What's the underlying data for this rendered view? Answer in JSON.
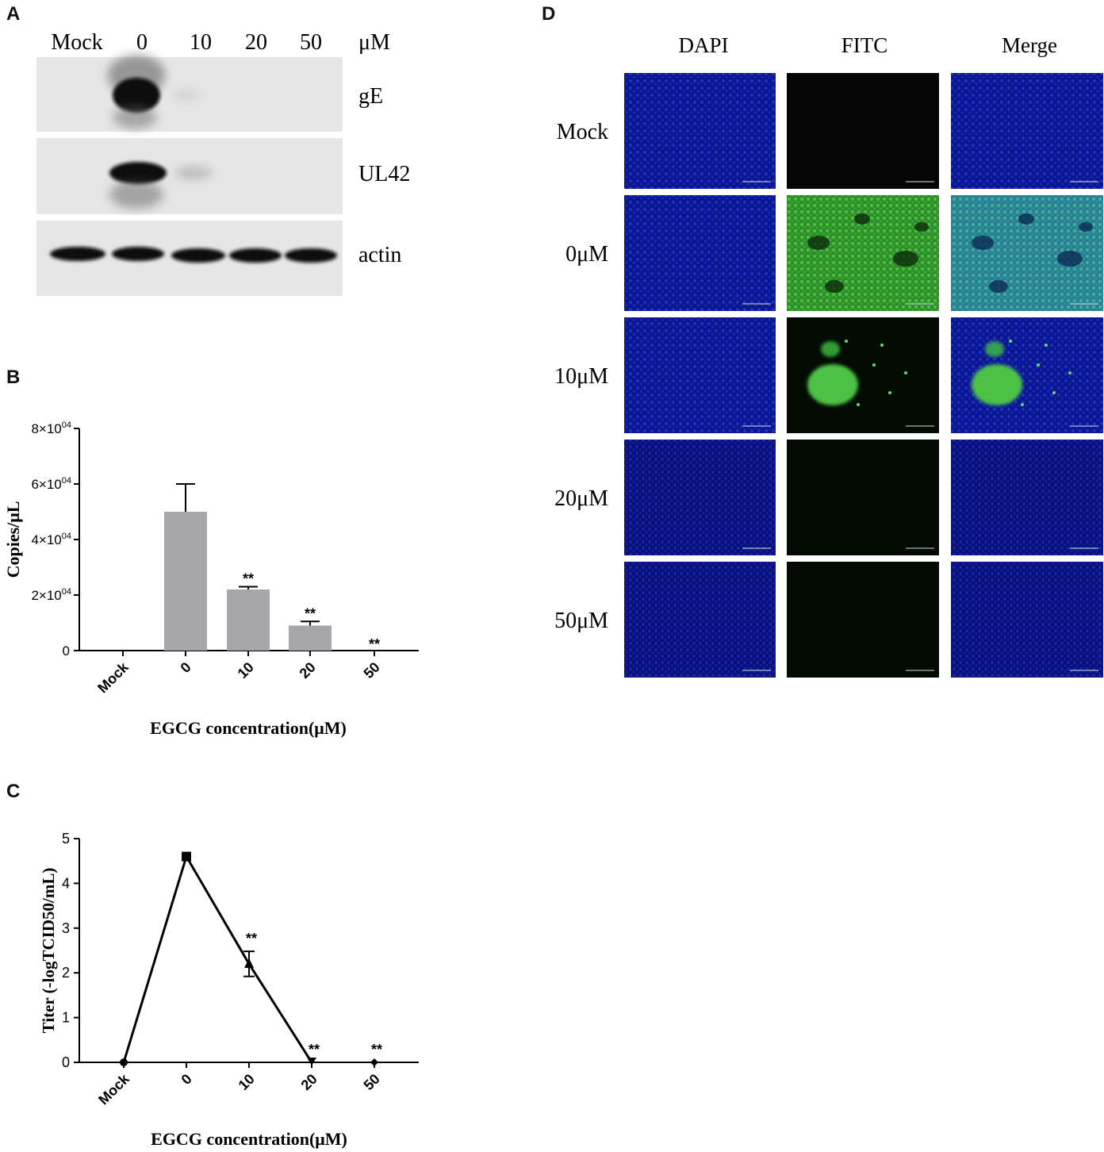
{
  "panels": {
    "a": "A",
    "b": "B",
    "c": "C",
    "d": "D"
  },
  "western_blot": {
    "lanes": [
      "Mock",
      "0",
      "10",
      "20",
      "50"
    ],
    "unit": "μM",
    "bands": [
      "gE",
      "UL42",
      "actin"
    ]
  },
  "fluorescence": {
    "channels": [
      "DAPI",
      "FITC",
      "Merge"
    ],
    "rows": [
      "Mock",
      "0μM",
      "10μM",
      "20μM",
      "50μM"
    ]
  },
  "chart_data": [
    {
      "type": "bar",
      "panel": "B",
      "categories": [
        "Mock",
        "0",
        "10",
        "20",
        "50"
      ],
      "values": [
        0,
        50000,
        22000,
        9000,
        0
      ],
      "errors": [
        0,
        10000,
        1000,
        1500,
        0
      ],
      "significance": [
        "",
        "",
        "**",
        "**",
        "**"
      ],
      "xlabel": "EGCG concentration(μM)",
      "ylabel": "Copies/μL",
      "ylim": [
        0,
        80000
      ],
      "yticks": [
        0,
        20000,
        40000,
        60000,
        80000
      ],
      "ytick_labels": [
        "0",
        "2×10",
        "4×10",
        "6×10",
        "8×10"
      ],
      "ytick_exp": "04",
      "bar_color": "#a6a6ab"
    },
    {
      "type": "line",
      "panel": "C",
      "categories": [
        "Mock",
        "0",
        "10",
        "20",
        "50"
      ],
      "values": [
        0,
        4.6,
        2.2,
        0,
        0
      ],
      "errors": [
        0,
        0,
        0.28,
        0,
        0
      ],
      "markers": [
        "circle",
        "square",
        "triangle-up",
        "triangle-down",
        "diamond"
      ],
      "significance": [
        "",
        "",
        "**",
        "**",
        "**"
      ],
      "xlabel": "EGCG concentration(μM)",
      "ylabel": "Titer (-logTCID50/mL)",
      "ylim": [
        0,
        5
      ],
      "yticks": [
        0,
        1,
        2,
        3,
        4,
        5
      ]
    }
  ]
}
